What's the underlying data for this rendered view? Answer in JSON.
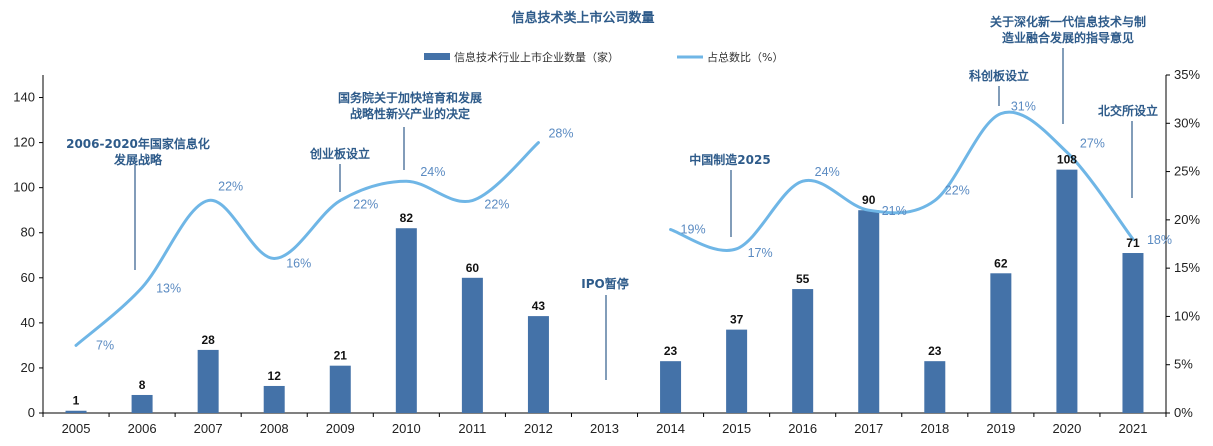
{
  "colors": {
    "bar": "#4472a8",
    "line": "#6fb6e6",
    "annotation": "#2e5b8a",
    "pct_label": "#5b8bc2"
  },
  "chart_data": {
    "type": "bar",
    "title": "信息技术类上市公司数量",
    "categories": [
      "2005",
      "2006",
      "2007",
      "2008",
      "2009",
      "2010",
      "2011",
      "2012",
      "2013",
      "2014",
      "2015",
      "2016",
      "2017",
      "2018",
      "2019",
      "2020",
      "2021"
    ],
    "series": [
      {
        "name": "信息技术行业上市企业数量（家）",
        "type": "bar",
        "axis": "left",
        "values": [
          1,
          8,
          28,
          12,
          21,
          82,
          60,
          43,
          null,
          23,
          37,
          55,
          90,
          23,
          62,
          108,
          71
        ],
        "labels": [
          "1",
          "8",
          "28",
          "12",
          "21",
          "82",
          "60",
          "43",
          "",
          "23",
          "37",
          "55",
          "90",
          "23",
          "62",
          "108",
          "71"
        ]
      },
      {
        "name": "占总数比（%）",
        "type": "line",
        "axis": "right",
        "values": [
          7,
          13,
          22,
          16,
          22,
          24,
          22,
          28,
          null,
          19,
          17,
          24,
          21,
          22,
          31,
          27,
          18
        ],
        "labels": [
          "7%",
          "13%",
          "22%",
          "16%",
          "22%",
          "24%",
          "22%",
          "28%",
          "",
          "19%",
          "17%",
          "24%",
          "21%",
          "22%",
          "31%",
          "27%",
          "18%"
        ]
      }
    ],
    "y_left": {
      "ylim": [
        0,
        150
      ],
      "ticks": [
        "0",
        "20",
        "40",
        "60",
        "80",
        "100",
        "120",
        "140"
      ]
    },
    "y_right": {
      "ylim": [
        0,
        35
      ],
      "ticks": [
        "0%",
        "5%",
        "10%",
        "15%",
        "20%",
        "25%",
        "30%",
        "35%"
      ]
    },
    "legend_position": "top",
    "annotations": [
      {
        "lines": [
          "2006-2020年国家信息化",
          "发展战略"
        ]
      },
      {
        "lines": [
          "创业板设立"
        ]
      },
      {
        "lines": [
          "国务院关于加快培育和发展",
          "战略性新兴产业的决定"
        ]
      },
      {
        "lines": [
          "IPO暂停"
        ]
      },
      {
        "lines": [
          "中国制造2025"
        ]
      },
      {
        "lines": [
          "科创板设立"
        ]
      },
      {
        "lines": [
          "关于深化新一代信息技术与制",
          "造业融合发展的指导意见"
        ]
      },
      {
        "lines": [
          "北交所设立"
        ]
      }
    ]
  }
}
